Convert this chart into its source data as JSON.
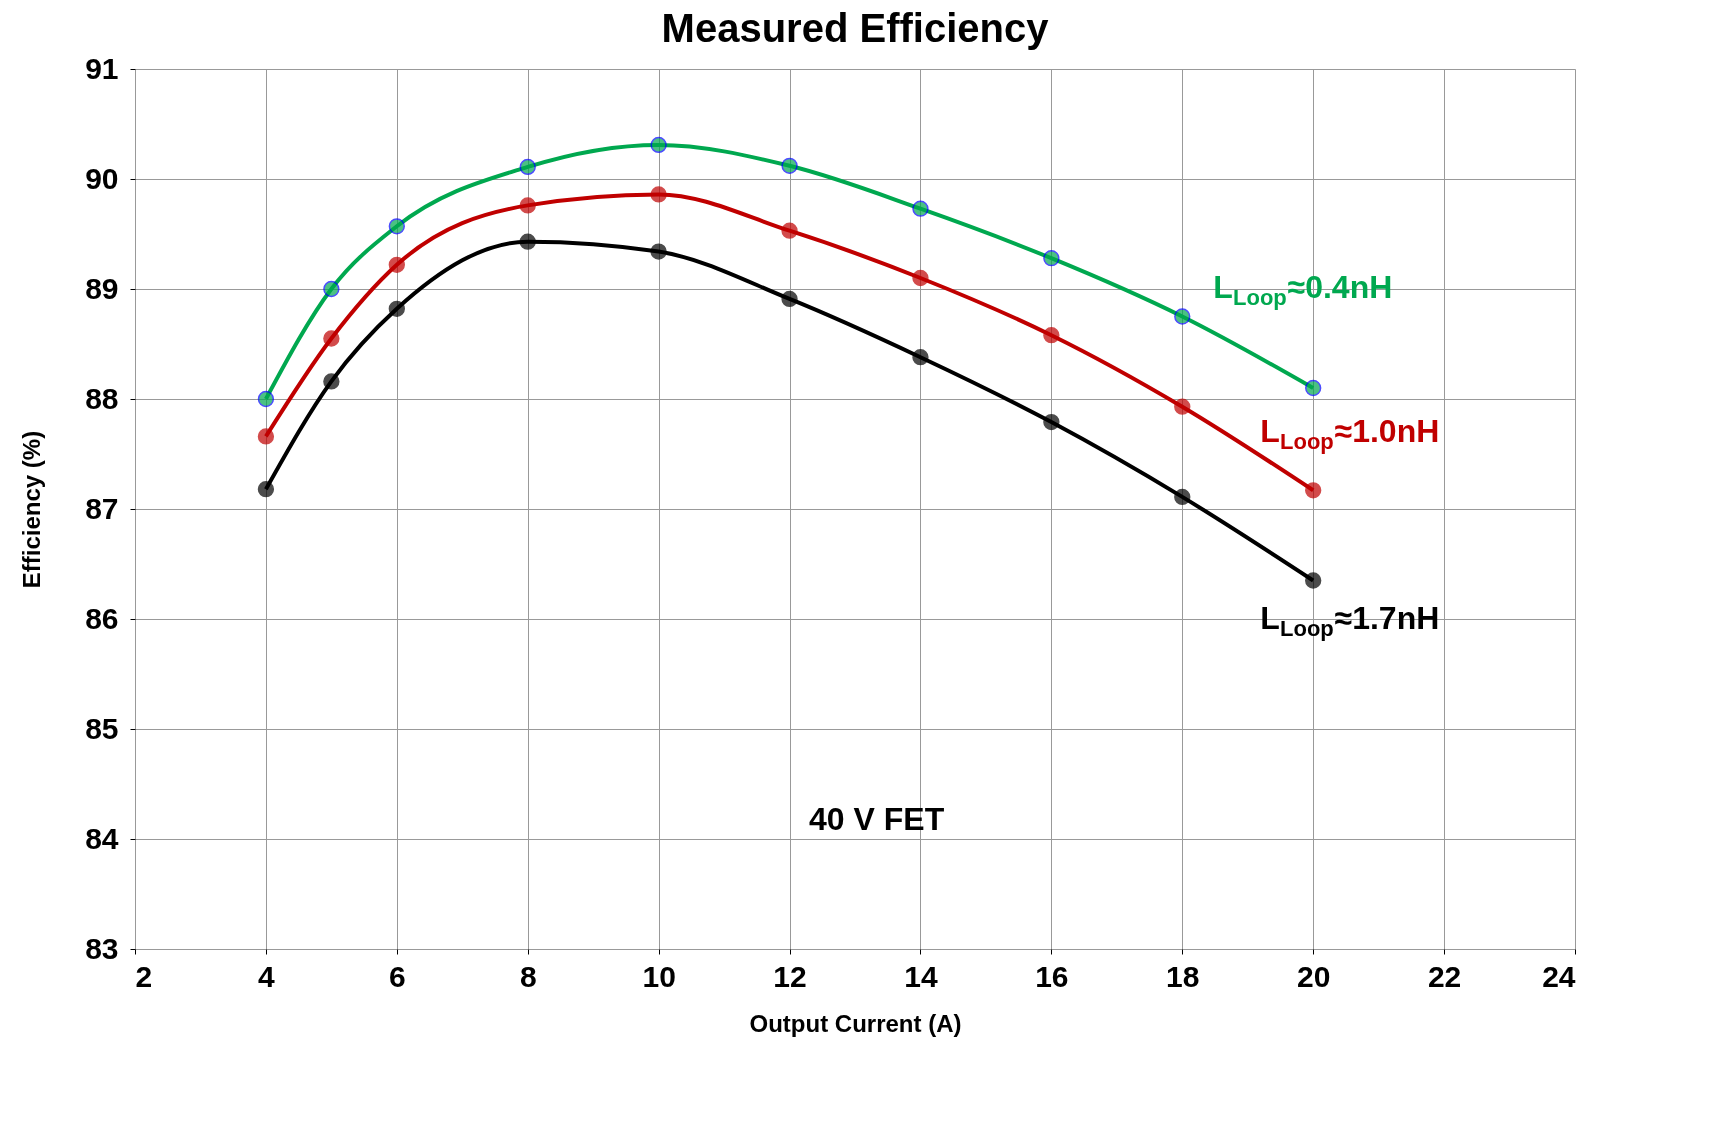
{
  "chart_data": {
    "type": "line",
    "title": "Measured Efficiency",
    "xlabel": "Output Current (A)",
    "ylabel": "Efficiency (%)",
    "x": [
      4,
      5,
      6,
      8,
      10,
      12,
      14,
      16,
      18,
      20
    ],
    "series": [
      {
        "name": "L$_{Loop}$≈0.4nH",
        "color": "#00a84f",
        "values": [
          88.0,
          89.0,
          89.57,
          90.11,
          90.31,
          90.12,
          89.73,
          89.28,
          88.75,
          88.1
        ]
      },
      {
        "name": "L$_{Loop}$≈1.0nH",
        "color": "#c00000",
        "values": [
          87.66,
          88.55,
          89.22,
          89.76,
          89.86,
          89.53,
          89.1,
          88.58,
          87.93,
          87.17
        ]
      },
      {
        "name": "L$_{Loop}$≈1.7nH",
        "color": "#000000",
        "values": [
          87.18,
          88.16,
          88.82,
          89.43,
          89.34,
          88.91,
          88.38,
          87.79,
          87.11,
          86.35
        ]
      }
    ],
    "xlim": [
      2,
      24
    ],
    "xticks": [
      2,
      4,
      6,
      8,
      10,
      12,
      14,
      16,
      18,
      20,
      22,
      24
    ],
    "ylim": [
      83,
      91
    ],
    "yticks": [
      83,
      84,
      85,
      86,
      87,
      88,
      89,
      90,
      91
    ],
    "grid": true,
    "marker": "circle",
    "line_style": "solid",
    "annotations": [
      "40 V FET"
    ]
  }
}
